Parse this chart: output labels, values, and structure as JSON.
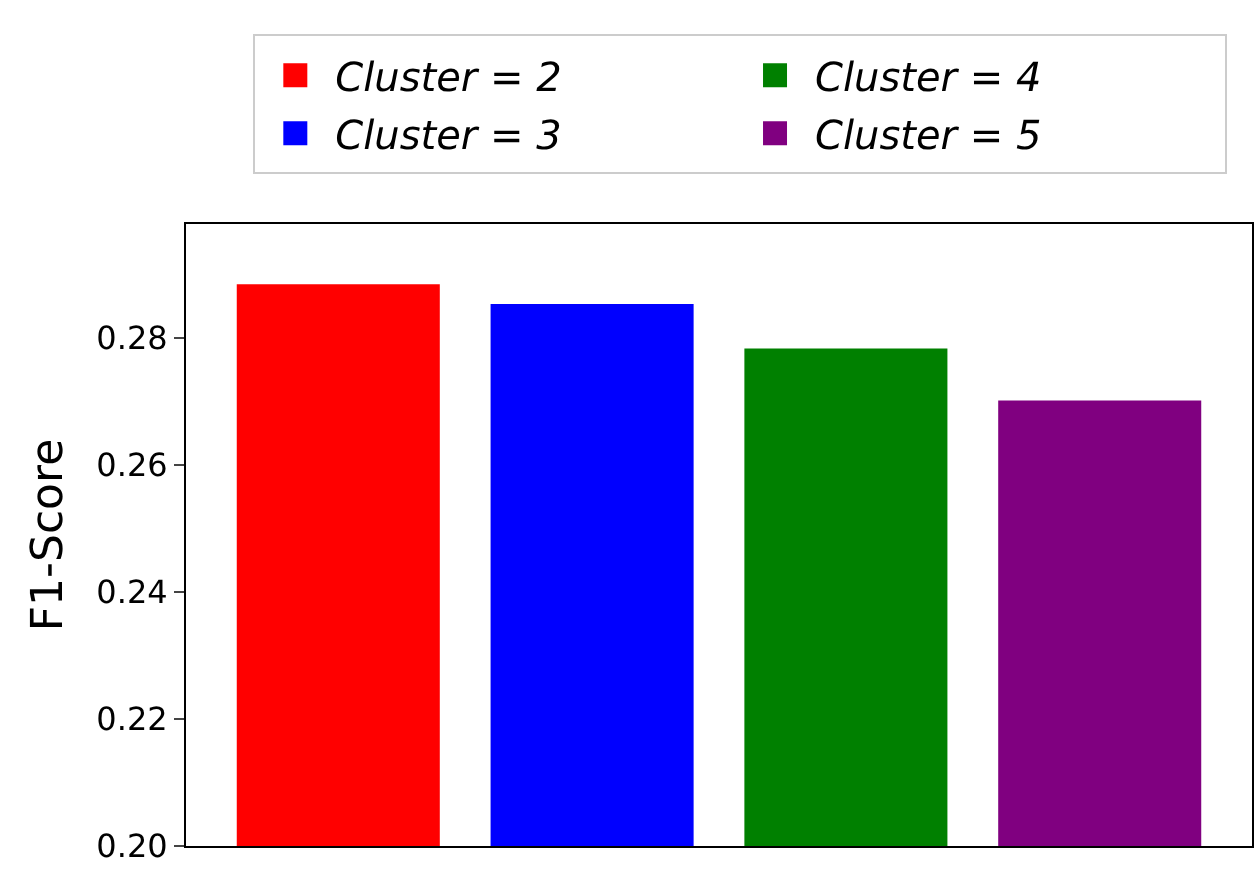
{
  "chart_data": {
    "type": "bar",
    "ylabel": "F1-Score",
    "categories": [
      null,
      null,
      null,
      null
    ],
    "series": [
      {
        "name": "Cluster = 2",
        "color": "#ff0000",
        "values": [
          0.2885,
          null,
          null,
          null
        ]
      },
      {
        "name": "Cluster = 3",
        "color": "#0000ff",
        "values": [
          null,
          0.2854,
          null,
          null
        ]
      },
      {
        "name": "Cluster = 4",
        "color": "#008000",
        "values": [
          null,
          null,
          0.2784,
          null
        ]
      },
      {
        "name": "Cluster = 5",
        "color": "#800080",
        "values": [
          null,
          null,
          null,
          0.2702
        ]
      }
    ],
    "ylim": [
      0.2,
      0.298
    ],
    "yticks": [
      {
        "value": 0.2,
        "label": "0.20"
      },
      {
        "value": 0.22,
        "label": "0.22"
      },
      {
        "value": 0.24,
        "label": "0.24"
      },
      {
        "value": 0.26,
        "label": "0.26"
      },
      {
        "value": 0.28,
        "label": "0.28"
      }
    ],
    "legend": "top"
  }
}
